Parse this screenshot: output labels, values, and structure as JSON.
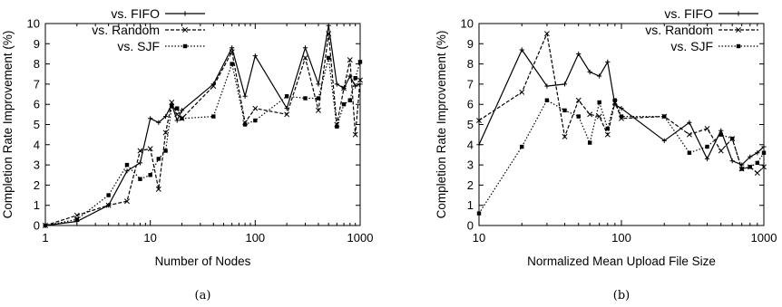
{
  "chart_data": [
    {
      "type": "line",
      "caption": "(a)",
      "xlabel": "Number of Nodes",
      "ylabel": "Completion Rate Improvement (%)",
      "xscale": "log",
      "xlim": [
        1,
        1000
      ],
      "ylim": [
        0,
        10
      ],
      "x_ticks": [
        "1",
        "10",
        "100",
        "1000"
      ],
      "y_ticks": [
        "0",
        "1",
        "2",
        "3",
        "4",
        "5",
        "6",
        "7",
        "8",
        "9",
        "10"
      ],
      "grid": false,
      "legend_position": "top-left",
      "series": [
        {
          "name": "vs. FIFO",
          "style": "solid",
          "marker": "plus",
          "x": [
            1,
            2,
            4,
            6,
            8,
            10,
            12,
            14,
            16,
            18,
            20,
            40,
            60,
            80,
            100,
            200,
            300,
            400,
            500,
            600,
            700,
            800,
            900,
            1000
          ],
          "y": [
            0.0,
            0.2,
            1.0,
            2.7,
            3.1,
            5.3,
            5.1,
            5.4,
            6.0,
            5.2,
            5.7,
            7.0,
            8.8,
            6.4,
            8.4,
            5.8,
            8.8,
            7.0,
            9.9,
            7.0,
            6.8,
            7.4,
            6.9,
            7.0
          ]
        },
        {
          "name": "vs. Random",
          "style": "dashed",
          "marker": "x",
          "x": [
            1,
            2,
            4,
            6,
            8,
            10,
            12,
            14,
            16,
            18,
            20,
            40,
            60,
            80,
            100,
            200,
            300,
            400,
            500,
            600,
            700,
            800,
            900,
            1000
          ],
          "y": [
            0.0,
            0.5,
            1.0,
            1.2,
            3.7,
            3.8,
            1.8,
            4.6,
            6.1,
            5.5,
            5.3,
            6.9,
            8.6,
            5.1,
            5.8,
            5.5,
            8.3,
            5.7,
            9.5,
            5.0,
            6.8,
            8.2,
            4.5,
            7.2
          ]
        },
        {
          "name": "vs. SJF",
          "style": "dotted",
          "marker": "square",
          "x": [
            1,
            2,
            4,
            6,
            8,
            10,
            12,
            14,
            16,
            18,
            20,
            40,
            60,
            80,
            100,
            200,
            300,
            400,
            500,
            600,
            700,
            800,
            900,
            1000
          ],
          "y": [
            0.0,
            0.3,
            1.5,
            3.0,
            2.3,
            2.5,
            3.3,
            3.7,
            5.9,
            5.8,
            5.3,
            5.4,
            8.0,
            5.0,
            5.2,
            6.4,
            6.3,
            6.3,
            8.3,
            4.9,
            6.0,
            6.2,
            7.3,
            8.1
          ]
        }
      ]
    },
    {
      "type": "line",
      "caption": "(b)",
      "xlabel": "Normalized Mean Upload File Size",
      "ylabel": "Completion Rate Improvement (%)",
      "xscale": "log",
      "xlim": [
        10,
        1000
      ],
      "ylim": [
        0,
        10
      ],
      "x_ticks": [
        "10",
        "100",
        "1000"
      ],
      "y_ticks": [
        "0",
        "1",
        "2",
        "3",
        "4",
        "5",
        "6",
        "7",
        "8",
        "9",
        "10"
      ],
      "grid": false,
      "legend_position": "top-right",
      "series": [
        {
          "name": "vs. FIFO",
          "style": "solid",
          "marker": "plus",
          "x": [
            10,
            20,
            30,
            40,
            50,
            60,
            70,
            80,
            90,
            100,
            200,
            300,
            400,
            500,
            600,
            700,
            800,
            900,
            1000
          ],
          "y": [
            4.0,
            8.7,
            6.9,
            7.0,
            8.5,
            7.6,
            7.4,
            8.1,
            6.0,
            5.8,
            4.2,
            5.1,
            3.3,
            4.7,
            3.2,
            3.0,
            3.4,
            3.6,
            3.9
          ]
        },
        {
          "name": "vs. Random",
          "style": "dashed",
          "marker": "x",
          "x": [
            10,
            20,
            30,
            40,
            50,
            60,
            70,
            80,
            90,
            100,
            200,
            300,
            400,
            500,
            600,
            700,
            800,
            900,
            1000
          ],
          "y": [
            5.2,
            6.6,
            9.5,
            4.4,
            6.2,
            5.5,
            5.4,
            4.5,
            6.1,
            5.3,
            5.4,
            4.5,
            4.8,
            3.7,
            4.3,
            2.8,
            2.9,
            2.6,
            2.9
          ]
        },
        {
          "name": "vs. SJF",
          "style": "dotted",
          "marker": "square",
          "x": [
            10,
            20,
            30,
            40,
            50,
            60,
            70,
            80,
            90,
            100,
            200,
            300,
            400,
            500,
            600,
            700,
            800,
            900,
            1000
          ],
          "y": [
            0.6,
            3.9,
            6.2,
            5.7,
            5.4,
            4.1,
            6.1,
            4.8,
            6.2,
            5.4,
            5.4,
            3.6,
            3.9,
            4.5,
            4.3,
            2.8,
            2.9,
            3.1,
            3.6
          ]
        }
      ]
    }
  ]
}
